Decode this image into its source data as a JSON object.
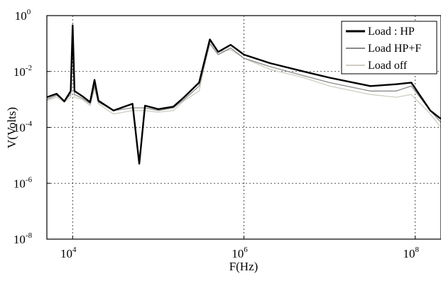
{
  "chart_data": {
    "type": "line",
    "title": "",
    "xlabel": "F(Hz)",
    "ylabel": "V(Volts)",
    "x_scale": "log",
    "y_scale": "log",
    "xlim": [
      5000,
      200000000
    ],
    "ylim": [
      1e-08,
      1
    ],
    "grid": true,
    "legend_position": "top-right",
    "x_ticks": [
      {
        "value": 10000,
        "base": "10",
        "exp": "4"
      },
      {
        "value": 1000000,
        "base": "10",
        "exp": "6"
      },
      {
        "value": 100000000,
        "base": "10",
        "exp": "8"
      }
    ],
    "y_ticks": [
      {
        "value": 1,
        "base": "10",
        "exp": "0"
      },
      {
        "value": 0.01,
        "base": "10",
        "exp": "-2"
      },
      {
        "value": 0.0001,
        "base": "10",
        "exp": "-4"
      },
      {
        "value": 1e-06,
        "base": "10",
        "exp": "-6"
      },
      {
        "value": 1e-08,
        "base": "10",
        "exp": "-8"
      }
    ],
    "series": [
      {
        "name": "Load : HP",
        "color": "#000000",
        "points": [
          [
            5000,
            0.0012
          ],
          [
            6500,
            0.0016
          ],
          [
            8000,
            0.00085
          ],
          [
            9500,
            0.002
          ],
          [
            10000,
            0.45
          ],
          [
            10500,
            0.002
          ],
          [
            13000,
            0.0013
          ],
          [
            16000,
            0.0008
          ],
          [
            18000,
            0.005
          ],
          [
            20000,
            0.0009
          ],
          [
            30000,
            0.0004
          ],
          [
            50000,
            0.0007
          ],
          [
            60000,
            5e-06
          ],
          [
            70000,
            0.0006
          ],
          [
            100000,
            0.00045
          ],
          [
            150000,
            0.00055
          ],
          [
            200000,
            0.0012
          ],
          [
            300000,
            0.004
          ],
          [
            400000,
            0.14
          ],
          [
            500000,
            0.05
          ],
          [
            700000,
            0.09
          ],
          [
            1000000,
            0.04
          ],
          [
            2000000,
            0.02
          ],
          [
            5000000,
            0.01
          ],
          [
            10000000,
            0.006
          ],
          [
            30000000,
            0.003
          ],
          [
            60000000,
            0.0035
          ],
          [
            90000000,
            0.004
          ],
          [
            150000000,
            0.0004
          ],
          [
            200000000,
            0.0002
          ]
        ]
      },
      {
        "name": "Load HP+F",
        "color": "#8a8a8a",
        "points": [
          [
            5000,
            0.001
          ],
          [
            6500,
            0.0014
          ],
          [
            8000,
            0.0009
          ],
          [
            9500,
            0.0015
          ],
          [
            10000,
            0.3
          ],
          [
            10500,
            0.0015
          ],
          [
            13000,
            0.0011
          ],
          [
            16000,
            0.0007
          ],
          [
            18000,
            0.003
          ],
          [
            20000,
            0.0008
          ],
          [
            30000,
            0.0004
          ],
          [
            50000,
            0.0005
          ],
          [
            70000,
            0.0005
          ],
          [
            100000,
            0.0004
          ],
          [
            150000,
            0.0005
          ],
          [
            200000,
            0.001
          ],
          [
            300000,
            0.003
          ],
          [
            400000,
            0.1
          ],
          [
            500000,
            0.04
          ],
          [
            700000,
            0.07
          ],
          [
            1000000,
            0.03
          ],
          [
            2000000,
            0.015
          ],
          [
            5000000,
            0.007
          ],
          [
            10000000,
            0.004
          ],
          [
            30000000,
            0.002
          ],
          [
            60000000,
            0.002
          ],
          [
            90000000,
            0.003
          ],
          [
            150000000,
            0.0004
          ],
          [
            200000000,
            0.00015
          ]
        ]
      },
      {
        "name": "Load off",
        "color": "#d0cdc4",
        "points": [
          [
            5000,
            0.0009
          ],
          [
            6500,
            0.0012
          ],
          [
            8000,
            0.0008
          ],
          [
            9500,
            0.0012
          ],
          [
            10000,
            0.2
          ],
          [
            10500,
            0.0012
          ],
          [
            13000,
            0.001
          ],
          [
            16000,
            0.0006
          ],
          [
            18000,
            0.0025
          ],
          [
            20000,
            0.0007
          ],
          [
            30000,
            0.0003
          ],
          [
            50000,
            0.0004
          ],
          [
            70000,
            0.0004
          ],
          [
            100000,
            0.00035
          ],
          [
            150000,
            0.0004
          ],
          [
            200000,
            0.0009
          ],
          [
            300000,
            0.002
          ],
          [
            400000,
            0.12
          ],
          [
            500000,
            0.05
          ],
          [
            700000,
            0.06
          ],
          [
            1000000,
            0.03
          ],
          [
            2000000,
            0.012
          ],
          [
            5000000,
            0.006
          ],
          [
            10000000,
            0.003
          ],
          [
            30000000,
            0.0015
          ],
          [
            60000000,
            0.0012
          ],
          [
            90000000,
            0.0015
          ],
          [
            150000000,
            0.0003
          ],
          [
            200000000,
            0.0001
          ]
        ]
      }
    ]
  }
}
